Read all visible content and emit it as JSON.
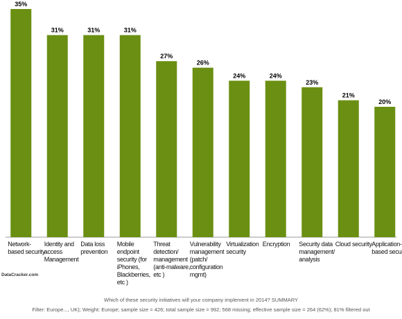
{
  "chart_data": {
    "type": "bar",
    "categories": [
      "Network-based security",
      "Identity and access Management",
      "Data loss prevention",
      "Mobile endpoint security (for iPhones, Blackberries, etc )",
      "Threat detection/ management (anti-malware, etc )",
      "Vulnerability management (patch/ configuration mgmt)",
      "Virtualization security",
      "Encryption",
      "Security data management/ analysis",
      "Cloud security",
      "Application-based security"
    ],
    "values": [
      35,
      31,
      31,
      31,
      27,
      26,
      24,
      24,
      23,
      21,
      20
    ],
    "value_labels": [
      "35%",
      "31%",
      "31%",
      "31%",
      "27%",
      "26%",
      "24%",
      "24%",
      "23%",
      "21%",
      "20%"
    ],
    "color": "#6a8f12",
    "source": "DataCracker.com",
    "question": "Which of these security initiatives will your company implement in 2014? SUMMARY",
    "filter_note": "Filter: Europe..., UK); Weight: Europe; sample size = 426; total sample size = 992; 568 missing; effective sample size = 264 (62%); 81% filtered out"
  }
}
